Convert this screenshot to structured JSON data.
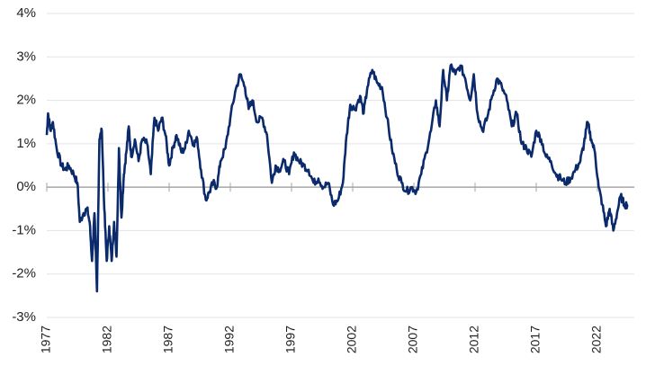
{
  "chart_data": {
    "type": "line",
    "title": "",
    "xlabel": "",
    "ylabel": "",
    "xlim": [
      1977,
      2024.5
    ],
    "ylim": [
      -3,
      4
    ],
    "grid": true,
    "y_ticks": [
      4,
      3,
      2,
      1,
      0,
      -1,
      -2,
      -3
    ],
    "y_tick_labels": [
      "4%",
      "3%",
      "2%",
      "1%",
      "0%",
      "-1%",
      "-2%",
      "-3%"
    ],
    "x_ticks": [
      1977,
      1982,
      1987,
      1992,
      1997,
      2002,
      2007,
      2012,
      2017,
      2022
    ],
    "x_tick_labels": [
      "1977",
      "1982",
      "1987",
      "1992",
      "1997",
      "2002",
      "2007",
      "2012",
      "2017",
      "2022"
    ],
    "line_color": "#0b2a6b",
    "series": [
      {
        "name": "series",
        "x": [
          1977.0,
          1977.1,
          1977.3,
          1977.5,
          1977.8,
          1978.2,
          1978.5,
          1978.8,
          1979.2,
          1979.5,
          1979.7,
          1980.0,
          1980.3,
          1980.5,
          1980.7,
          1980.9,
          1981.1,
          1981.3,
          1981.5,
          1981.7,
          1981.9,
          1982.1,
          1982.3,
          1982.5,
          1982.7,
          1982.9,
          1983.1,
          1983.3,
          1983.5,
          1983.7,
          1983.9,
          1984.2,
          1984.5,
          1984.8,
          1985.2,
          1985.5,
          1985.8,
          1986.1,
          1986.4,
          1986.7,
          1987.0,
          1987.3,
          1987.6,
          1988.0,
          1988.3,
          1988.6,
          1989.0,
          1989.3,
          1989.6,
          1990.0,
          1990.3,
          1990.6,
          1990.9,
          1991.2,
          1991.6,
          1992.0,
          1992.4,
          1992.8,
          1993.2,
          1993.5,
          1993.8,
          1994.2,
          1994.6,
          1995.0,
          1995.4,
          1995.7,
          1996.0,
          1996.4,
          1996.8,
          1997.2,
          1997.6,
          1998.0,
          1998.4,
          1998.8,
          1999.2,
          1999.6,
          2000.0,
          2000.4,
          2000.8,
          2001.2,
          2001.5,
          2001.8,
          2002.2,
          2002.6,
          2002.9,
          2003.2,
          2003.6,
          2004.0,
          2004.4,
          2004.8,
          2005.2,
          2005.6,
          2006.0,
          2006.4,
          2006.8,
          2007.2,
          2007.6,
          2008.0,
          2008.4,
          2008.8,
          2009.1,
          2009.4,
          2009.7,
          2010.0,
          2010.4,
          2010.8,
          2011.2,
          2011.6,
          2011.9,
          2012.2,
          2012.6,
          2013.0,
          2013.4,
          2013.8,
          2014.2,
          2014.6,
          2015.0,
          2015.4,
          2015.8,
          2016.2,
          2016.6,
          2017.0,
          2017.4,
          2017.8,
          2018.2,
          2018.6,
          2019.0,
          2019.4,
          2019.8,
          2020.2,
          2020.6,
          2020.9,
          2021.2,
          2021.5,
          2021.8,
          2022.1,
          2022.4,
          2022.7,
          2023.0,
          2023.3,
          2023.6,
          2023.9,
          2024.2,
          2024.5
        ],
        "y": [
          1.2,
          1.7,
          1.3,
          1.5,
          0.9,
          0.5,
          0.4,
          0.5,
          0.3,
          0.1,
          -0.8,
          -0.6,
          -0.5,
          -0.8,
          -1.7,
          -0.6,
          -2.4,
          1.1,
          1.3,
          -0.5,
          -1.7,
          -0.9,
          -1.7,
          -0.8,
          -1.6,
          0.9,
          -0.7,
          0.3,
          0.8,
          1.4,
          0.7,
          1.1,
          0.6,
          1.1,
          1.0,
          0.3,
          1.6,
          1.3,
          1.6,
          1.2,
          0.5,
          0.9,
          1.2,
          0.8,
          0.9,
          1.3,
          1.0,
          1.1,
          0.4,
          -0.3,
          -0.1,
          0.1,
          0.0,
          0.6,
          0.9,
          1.6,
          2.2,
          2.6,
          2.3,
          1.8,
          2.0,
          1.5,
          1.6,
          1.2,
          0.1,
          0.5,
          0.4,
          0.6,
          0.3,
          0.8,
          0.6,
          0.5,
          0.4,
          0.1,
          0.2,
          0.0,
          0.1,
          -0.4,
          -0.3,
          0.1,
          1.2,
          1.9,
          1.8,
          2.1,
          1.7,
          2.3,
          2.7,
          2.4,
          2.3,
          1.6,
          0.9,
          0.4,
          0.1,
          -0.1,
          0.0,
          -0.1,
          0.3,
          0.8,
          1.3,
          2.0,
          1.4,
          2.7,
          2.0,
          2.8,
          2.6,
          2.8,
          2.5,
          2.0,
          2.6,
          1.7,
          1.3,
          1.6,
          2.1,
          2.5,
          2.3,
          2.0,
          1.4,
          1.7,
          1.0,
          0.9,
          0.7,
          1.3,
          1.1,
          0.7,
          0.6,
          0.3,
          0.2,
          0.1,
          0.2,
          0.4,
          0.6,
          1.0,
          1.5,
          1.1,
          0.8,
          0.0,
          -0.4,
          -0.9,
          -0.5,
          -1.0,
          -0.6,
          -0.2,
          -0.4,
          -0.4
        ]
      }
    ]
  }
}
